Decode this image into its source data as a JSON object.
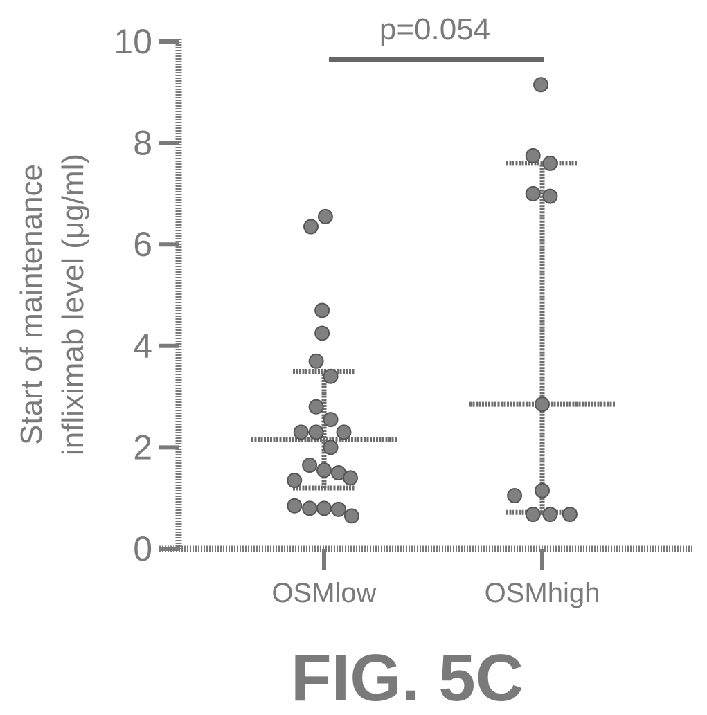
{
  "chart_data": {
    "type": "scatter",
    "title": "",
    "ylabel_line1": "Start of maintenance",
    "ylabel_line2": "infliximab level (μg/ml)",
    "xlabel": "",
    "ylim": [
      0,
      10
    ],
    "yticks": [
      "0",
      "2",
      "4",
      "6",
      "8",
      "10"
    ],
    "categories": [
      "OSMlow",
      "OSMhigh"
    ],
    "grid": false,
    "annotation": "p=0.054",
    "series": [
      {
        "category": "OSMlow",
        "median": 2.15,
        "q1": 1.2,
        "q3": 3.5,
        "points": [
          {
            "dx": -0.2,
            "y": 6.35
          },
          {
            "dx": 0.02,
            "y": 6.55
          },
          {
            "dx": -0.03,
            "y": 4.7
          },
          {
            "dx": -0.03,
            "y": 4.25
          },
          {
            "dx": -0.12,
            "y": 3.7
          },
          {
            "dx": 0.1,
            "y": 3.4
          },
          {
            "dx": -0.12,
            "y": 2.8
          },
          {
            "dx": 0.1,
            "y": 2.55
          },
          {
            "dx": -0.35,
            "y": 2.3
          },
          {
            "dx": -0.12,
            "y": 2.3
          },
          {
            "dx": 0.3,
            "y": 2.3
          },
          {
            "dx": 0.1,
            "y": 2.0
          },
          {
            "dx": -0.22,
            "y": 1.65
          },
          {
            "dx": 0.0,
            "y": 1.55
          },
          {
            "dx": 0.22,
            "y": 1.5
          },
          {
            "dx": -0.45,
            "y": 1.35
          },
          {
            "dx": 0.4,
            "y": 1.4
          },
          {
            "dx": -0.45,
            "y": 0.85
          },
          {
            "dx": -0.22,
            "y": 0.8
          },
          {
            "dx": 0.0,
            "y": 0.8
          },
          {
            "dx": 0.22,
            "y": 0.78
          },
          {
            "dx": 0.42,
            "y": 0.65
          }
        ]
      },
      {
        "category": "OSMhigh",
        "median": 2.85,
        "q1": 0.72,
        "q3": 7.6,
        "points": [
          {
            "dx": -0.02,
            "y": 9.15
          },
          {
            "dx": -0.14,
            "y": 7.75
          },
          {
            "dx": 0.12,
            "y": 7.6
          },
          {
            "dx": -0.14,
            "y": 7.0
          },
          {
            "dx": 0.12,
            "y": 6.95
          },
          {
            "dx": 0.0,
            "y": 2.85
          },
          {
            "dx": -0.42,
            "y": 1.05
          },
          {
            "dx": 0.0,
            "y": 1.15
          },
          {
            "dx": -0.14,
            "y": 0.68
          },
          {
            "dx": 0.12,
            "y": 0.68
          },
          {
            "dx": 0.42,
            "y": 0.68
          }
        ]
      }
    ]
  },
  "figure_label": "FIG. 5C"
}
